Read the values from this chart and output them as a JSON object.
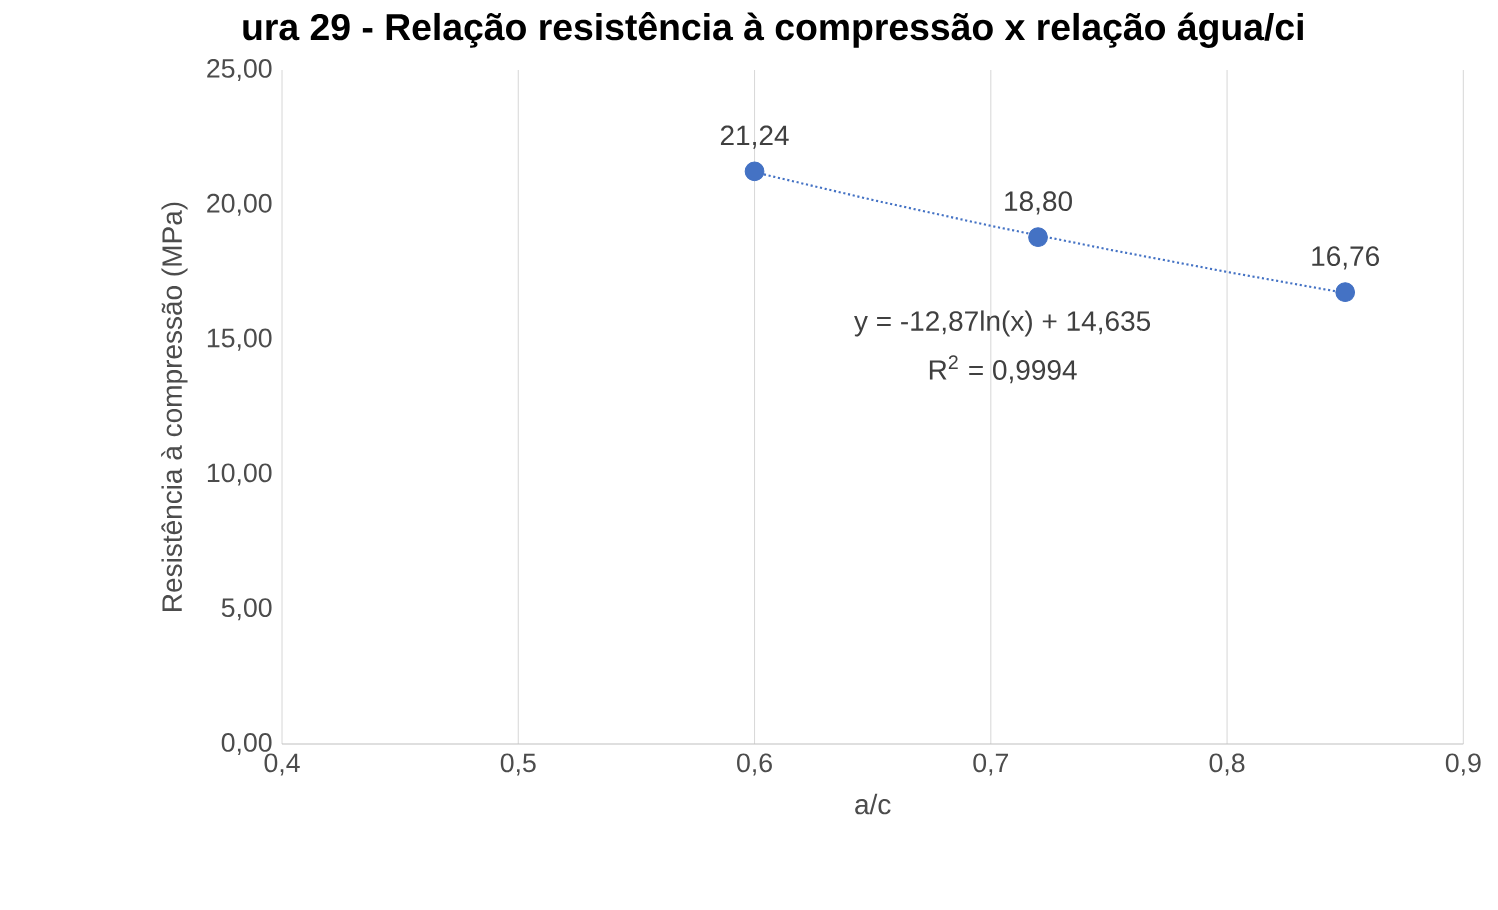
{
  "chart_data": {
    "type": "scatter",
    "title": "ura 29 - Relação resistência à compressão x relação água/ci",
    "xlabel": "a/c",
    "ylabel": "Resistência à compressão (MPa)",
    "series": [
      {
        "color": "#4472c4",
        "marker": "circle",
        "x": [
          0.6,
          0.72,
          0.85
        ],
        "values": [
          21.24,
          18.8,
          16.76
        ],
        "value_labels": [
          "21,24",
          "18,80",
          "16,76"
        ]
      },
      {
        "type": "line",
        "color": "#4472c4",
        "marker": "none",
        "line_style": "dotted",
        "x": [
          0.6,
          0.65,
          0.7,
          0.75,
          0.8,
          0.85
        ],
        "values": [
          21.21,
          20.18,
          19.22,
          18.34,
          17.51,
          16.73
        ]
      }
    ],
    "annotations": [
      "y = -12,87ln(x) + 14,635",
      "R$^{2}$ = 0,9994"
    ],
    "xlim": [
      0.4,
      0.9
    ],
    "ylim": [
      0,
      25
    ],
    "xticks": [
      {
        "value": 0.4,
        "label": "0,4"
      },
      {
        "value": 0.5,
        "label": "0,5"
      },
      {
        "value": 0.6,
        "label": "0,6"
      },
      {
        "value": 0.7,
        "label": "0,7"
      },
      {
        "value": 0.8,
        "label": "0,8"
      },
      {
        "value": 0.9,
        "label": "0,9"
      }
    ],
    "yticks": [
      {
        "value": 0,
        "label": "0,00"
      },
      {
        "value": 5,
        "label": "5,00"
      },
      {
        "value": 10,
        "label": "10,00"
      },
      {
        "value": 15,
        "label": "15,00"
      },
      {
        "value": 20,
        "label": "20,00"
      },
      {
        "value": 25,
        "label": "25,00"
      }
    ],
    "grid": "x"
  }
}
